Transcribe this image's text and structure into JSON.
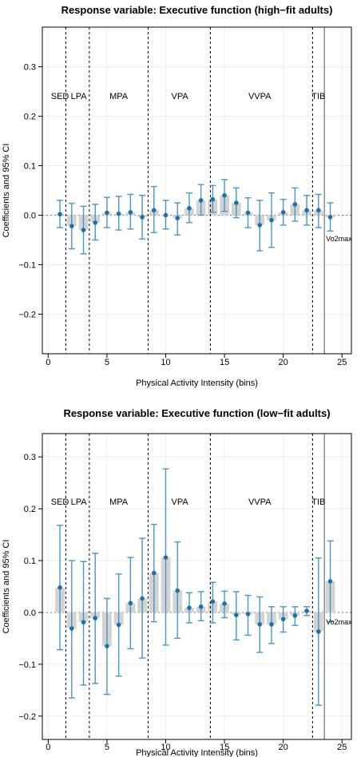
{
  "colors": {
    "bar": "#d3d3d3",
    "point": "#1f6fa8",
    "errorbar": "#4b94c7",
    "grid": "#eeeeee"
  },
  "chart_data": [
    {
      "type": "bar",
      "title": "Response variable: Executive function (high−fit adults)",
      "xlabel": "Physical Activity Intensity (bins)",
      "ylabel": "Coefficients and 95% CI",
      "xlim": [
        -0.5,
        25.8
      ],
      "ylim": [
        -0.28,
        0.38
      ],
      "xticks": [
        0,
        5,
        10,
        15,
        20,
        25
      ],
      "yticks": [
        -0.2,
        -0.1,
        0.0,
        0.1,
        0.2,
        0.3
      ],
      "ytick_labels": [
        "−0.2",
        "−0.1",
        "0.0",
        "0.1",
        "0.2",
        "0.3"
      ],
      "grid": true,
      "dashed_vlines": [
        1.5,
        3.5,
        8.5,
        13.8,
        22.5
      ],
      "solid_vline": 23.5,
      "regions": [
        {
          "label": "SED",
          "x": 1.0
        },
        {
          "label": "LPA",
          "x": 2.6
        },
        {
          "label": "MPA",
          "x": 6.0
        },
        {
          "label": "VPA",
          "x": 11.2
        },
        {
          "label": "VVPA",
          "x": 18.0
        },
        {
          "label": "TIB",
          "x": 23.0
        }
      ],
      "vo2_label": "Vo2max",
      "x": [
        1,
        2,
        3,
        4,
        5,
        6,
        7,
        8,
        9,
        10,
        11,
        12,
        13,
        14,
        15,
        16,
        17,
        18,
        19,
        20,
        21,
        22,
        23,
        24
      ],
      "values": [
        0.002,
        -0.022,
        -0.03,
        -0.015,
        0.005,
        0.003,
        0.006,
        -0.004,
        0.01,
        0.0,
        -0.006,
        0.014,
        0.03,
        0.032,
        0.04,
        0.025,
        0.005,
        -0.02,
        -0.01,
        0.006,
        0.022,
        0.01,
        0.01,
        -0.004
      ],
      "lower": [
        -0.025,
        -0.068,
        -0.078,
        -0.05,
        -0.025,
        -0.03,
        -0.028,
        -0.048,
        -0.035,
        -0.028,
        -0.04,
        -0.015,
        0.0,
        0.006,
        0.008,
        -0.005,
        -0.025,
        -0.072,
        -0.065,
        -0.02,
        -0.012,
        -0.02,
        -0.025,
        -0.032
      ],
      "upper": [
        0.03,
        0.024,
        0.018,
        0.022,
        0.036,
        0.038,
        0.042,
        0.04,
        0.058,
        0.03,
        0.025,
        0.045,
        0.062,
        0.06,
        0.072,
        0.055,
        0.035,
        0.03,
        0.045,
        0.032,
        0.055,
        0.04,
        0.042,
        0.025
      ]
    },
    {
      "type": "bar",
      "title": "Response variable: Executive function (low−fit adults)",
      "xlabel": "Physical Activity Intensity (bins)",
      "ylabel": "Coefficients and 95% CI",
      "xlim": [
        -0.5,
        25.8
      ],
      "ylim": [
        -0.245,
        0.345
      ],
      "xticks": [
        0,
        5,
        10,
        15,
        20,
        25
      ],
      "yticks": [
        -0.2,
        -0.1,
        0.0,
        0.1,
        0.2,
        0.3
      ],
      "ytick_labels": [
        "−0.2",
        "−0.1",
        "0.0",
        "0.1",
        "0.2",
        "0.3"
      ],
      "grid": true,
      "dashed_vlines": [
        1.5,
        3.5,
        8.5,
        13.8,
        22.5
      ],
      "solid_vline": 23.5,
      "regions": [
        {
          "label": "SED",
          "x": 1.0
        },
        {
          "label": "LPA",
          "x": 2.6
        },
        {
          "label": "MPA",
          "x": 6.0
        },
        {
          "label": "VPA",
          "x": 11.2
        },
        {
          "label": "VVPA",
          "x": 18.0
        },
        {
          "label": "TIB",
          "x": 23.0
        }
      ],
      "vo2_label": "Vo2max",
      "x": [
        1,
        2,
        3,
        4,
        5,
        6,
        7,
        8,
        9,
        10,
        11,
        12,
        13,
        14,
        15,
        16,
        17,
        18,
        19,
        20,
        21,
        22,
        23,
        24
      ],
      "values": [
        0.048,
        -0.031,
        -0.019,
        -0.011,
        -0.065,
        -0.024,
        0.018,
        0.027,
        0.076,
        0.106,
        0.042,
        0.009,
        0.011,
        0.021,
        0.017,
        -0.005,
        -0.003,
        -0.023,
        -0.023,
        -0.013,
        -0.006,
        0.003,
        -0.037,
        0.06
      ],
      "lower": [
        -0.072,
        -0.165,
        -0.14,
        -0.137,
        -0.158,
        -0.123,
        -0.07,
        -0.088,
        -0.018,
        -0.063,
        -0.05,
        -0.02,
        -0.016,
        -0.02,
        -0.01,
        -0.053,
        -0.044,
        -0.077,
        -0.06,
        -0.038,
        -0.025,
        -0.006,
        -0.179,
        -0.018
      ],
      "upper": [
        0.168,
        0.1,
        0.098,
        0.114,
        0.027,
        0.074,
        0.106,
        0.143,
        0.17,
        0.277,
        0.136,
        0.038,
        0.04,
        0.058,
        0.041,
        0.04,
        0.033,
        0.03,
        0.011,
        0.011,
        0.011,
        0.011,
        0.105,
        0.138
      ]
    }
  ]
}
